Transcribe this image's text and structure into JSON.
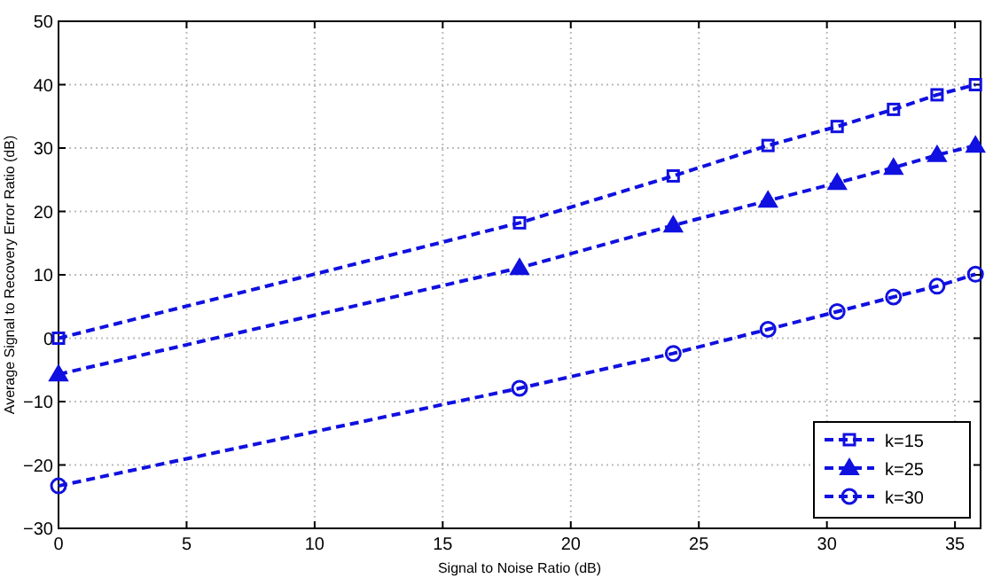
{
  "chart_data": {
    "type": "line",
    "xlabel": "Signal to Noise Ratio (dB)",
    "ylabel": "Average Signal to Recovery Error Ratio (dB)",
    "xlim": [
      0,
      36
    ],
    "xticks": [
      0,
      5,
      10,
      15,
      20,
      25,
      30,
      35
    ],
    "ylim": [
      -30,
      50
    ],
    "yticks": [
      {
        "value": -30,
        "label": "−30"
      },
      {
        "value": -20,
        "label": "−20"
      },
      {
        "value": -10,
        "label": "−10"
      },
      0,
      10,
      20,
      30,
      40,
      50
    ],
    "grid": true,
    "legend": "bottom right",
    "line_style": "dashed",
    "series": [
      {
        "name": "k=15",
        "color": "#1010e0",
        "marker": "square",
        "x": [
          0,
          18,
          24,
          27.7,
          30.4,
          32.6,
          34.3,
          35.8
        ],
        "values": [
          0,
          18.2,
          25.6,
          30.4,
          33.4,
          36.1,
          38.4,
          40.0
        ]
      },
      {
        "name": "k=25",
        "color": "#1010e0",
        "marker": "triangle",
        "x": [
          0,
          18,
          24,
          27.7,
          30.4,
          32.6,
          34.3,
          35.8
        ],
        "values": [
          -5.7,
          11.1,
          17.8,
          21.7,
          24.5,
          26.9,
          28.9,
          30.4
        ]
      },
      {
        "name": "k=30",
        "color": "#1010e0",
        "marker": "circle",
        "x": [
          0,
          18,
          24,
          27.7,
          30.4,
          32.6,
          34.3,
          35.8
        ],
        "values": [
          -23.3,
          -7.9,
          -2.4,
          1.4,
          4.2,
          6.5,
          8.2,
          10.1
        ]
      }
    ]
  }
}
